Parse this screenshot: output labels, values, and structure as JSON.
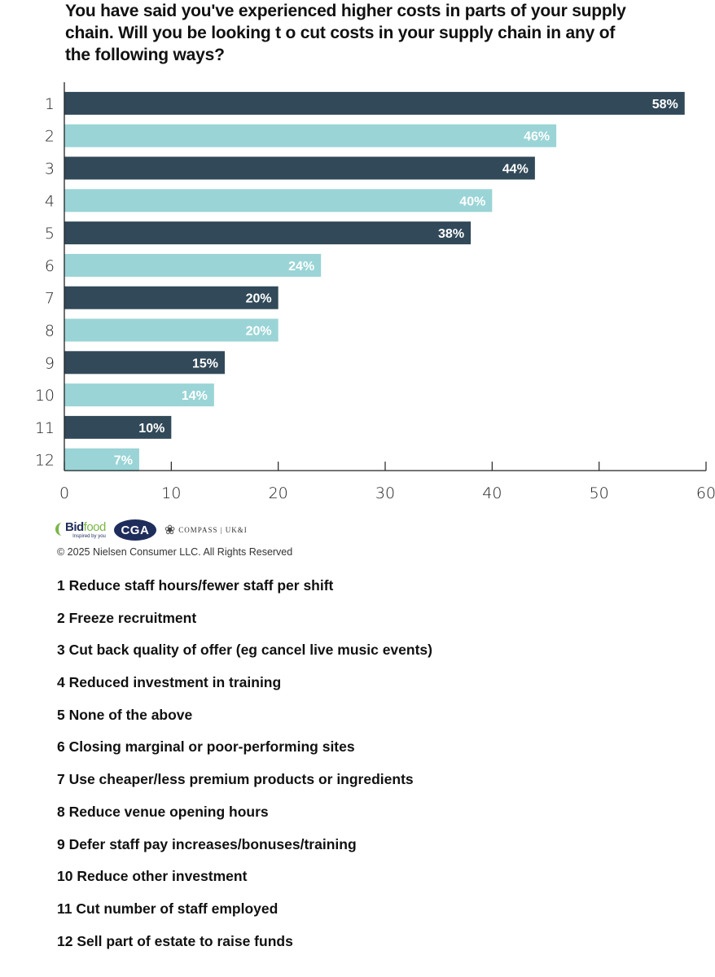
{
  "chart_data": {
    "type": "bar",
    "orientation": "horizontal",
    "title": "You have said you've experienced higher costs in parts of your supply chain. Will you be looking t o cut costs in your supply chain in any of the following ways?",
    "xlabel": "",
    "ylabel": "",
    "categories": [
      "1",
      "2",
      "3",
      "4",
      "5",
      "6",
      "7",
      "8",
      "9",
      "10",
      "11",
      "12"
    ],
    "values": [
      58,
      46,
      44,
      40,
      38,
      24,
      20,
      20,
      15,
      14,
      10,
      7
    ],
    "value_labels": [
      "58%",
      "46%",
      "44%",
      "40%",
      "38%",
      "24%",
      "20%",
      "20%",
      "15%",
      "14%",
      "10%",
      "7%"
    ],
    "xlim": [
      0,
      60
    ],
    "x_ticks": [
      0,
      10,
      20,
      30,
      40,
      50,
      60
    ],
    "x_tick_labels": [
      "0",
      "10",
      "20",
      "30",
      "40",
      "50",
      "60"
    ],
    "grid": false,
    "colors": {
      "dark": "#314959",
      "light": "#9ad4d6",
      "label_text": "#ffffff"
    },
    "color_pattern": "alternating dark/light starting dark"
  },
  "logos": {
    "bidfood_name_a": "Bid",
    "bidfood_name_b": "food",
    "bidfood_tagline": "Inspired by you",
    "cga": "CGA",
    "compass": "COMPASS | UK&I"
  },
  "copyright": "© 2025 Nielsen Consumer LLC. All Rights Reserved",
  "legend": [
    "1 Reduce staff hours/fewer staff per shift",
    "2 Freeze recruitment",
    "3 Cut back quality of offer (eg cancel live music events)",
    "4 Reduced investment in training",
    "5 None of the above",
    "6 Closing marginal or poor-performing sites",
    "7 Use cheaper/less premium products or ingredients",
    "8 Reduce venue opening hours",
    "9 Defer staff pay increases/bonuses/training",
    "10 Reduce other investment",
    "11 Cut number of staff employed",
    "12 Sell part of estate to raise funds"
  ]
}
